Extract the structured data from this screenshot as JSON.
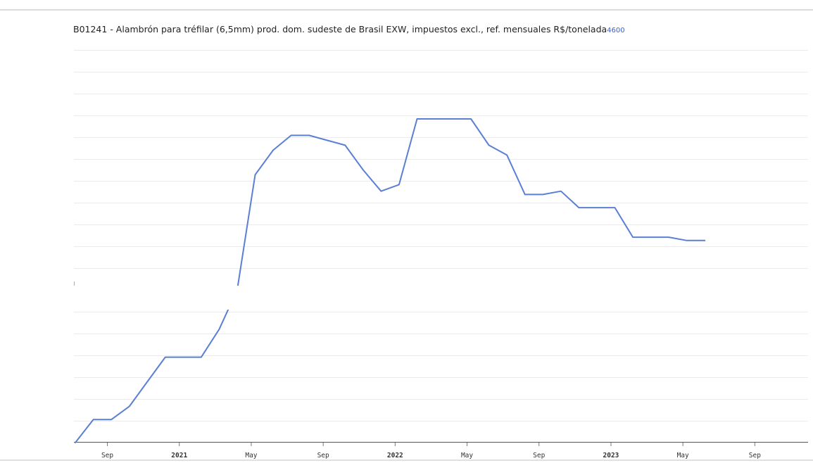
{
  "chart_data": {
    "type": "line",
    "title": "B01241 - Alambrón para tréfilar (6,5mm) prod. dom. sudeste de Brasil EXW, impuestos excl., ref. mensuales R$/tonelada",
    "title_value": "4600",
    "xlabel": "",
    "ylabel": "",
    "grid": true,
    "line_color": "#5b7fd4",
    "x_ticks": [
      {
        "label": "Sep",
        "month": "2020-09",
        "year_tick": false
      },
      {
        "label": "2021",
        "month": "2021-01",
        "year_tick": true
      },
      {
        "label": "May",
        "month": "2021-05",
        "year_tick": false
      },
      {
        "label": "Sep",
        "month": "2021-09",
        "year_tick": false
      },
      {
        "label": "2022",
        "month": "2022-01",
        "year_tick": true
      },
      {
        "label": "May",
        "month": "2022-05",
        "year_tick": false
      },
      {
        "label": "Sep",
        "month": "2022-09",
        "year_tick": false
      },
      {
        "label": "2023",
        "month": "2023-01",
        "year_tick": true
      },
      {
        "label": "May",
        "month": "2023-05",
        "year_tick": false
      },
      {
        "label": "Sep",
        "month": "2023-09",
        "year_tick": false
      }
    ],
    "series": [
      {
        "x": [
          "2020-08",
          "2020-09",
          "2020-10",
          "2020-11",
          "2020-12",
          "2021-01",
          "2021-02",
          "2021-03",
          "2021-04",
          "2021-05",
          "2021-06",
          "2021-07",
          "2021-08",
          "2021-09",
          "2021-10",
          "2021-11",
          "2021-12",
          "2022-01",
          "2022-02",
          "2022-03",
          "2022-04",
          "2022-05",
          "2022-06",
          "2022-07",
          "2022-08",
          "2022-09",
          "2022-10",
          "2022-11",
          "2022-12",
          "2023-01",
          "2023-02",
          "2023-03",
          "2023-04",
          "2023-05",
          "2023-06",
          "2023-07"
        ],
        "y": [
          2360,
          2500,
          2500,
          2580,
          2730,
          2880,
          2880,
          2880,
          3050,
          3290,
          3990,
          4140,
          4230,
          4230,
          4200,
          4170,
          4020,
          3890,
          3930,
          4330,
          4330,
          4330,
          4330,
          4170,
          4110,
          3870,
          3870,
          3890,
          3790,
          3790,
          3790,
          3610,
          3610,
          3610,
          3590,
          3590
        ]
      }
    ]
  }
}
